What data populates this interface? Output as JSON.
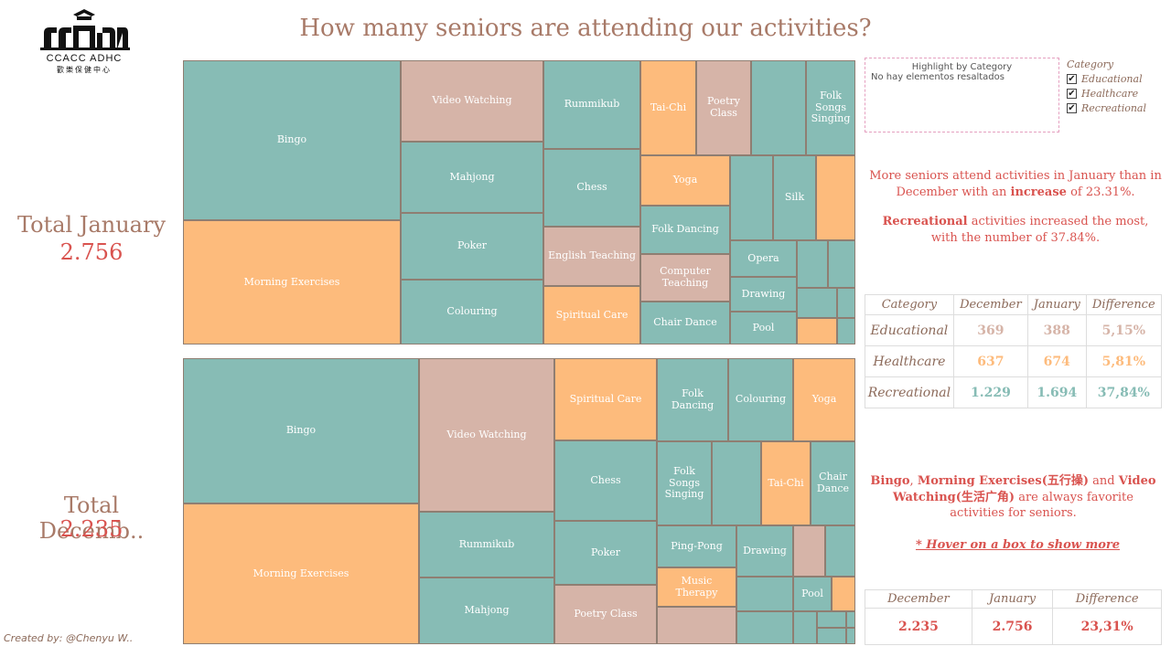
{
  "logo": {
    "name": "CCACC ADHC",
    "subtitle": "歡樂保健中心"
  },
  "title": "How many seniors are attending our activities?",
  "totals": {
    "january_label": "Total January",
    "january_value": "2.756",
    "december_label": "Total Decemb..",
    "december_value": "2.235"
  },
  "highlight": {
    "title": "Highlight by Category",
    "status": "No hay elementos resaltados"
  },
  "legend": {
    "title": "Category",
    "items": [
      {
        "label": "Educational",
        "checked": "✔"
      },
      {
        "label": "Healthcare",
        "checked": "✔"
      },
      {
        "label": "Recreational",
        "checked": "✔"
      }
    ]
  },
  "insights": {
    "line1a": "More seniors attend activities in January than in December with an ",
    "line1b": "increase",
    "line1c": " of 23.31%.",
    "line2a": "Recreational",
    "line2b": " activities increased the most, with the number of 37.84%.",
    "fav_a": "Bingo",
    "fav_b": ", ",
    "fav_c": "Morning Exercises(五行操)",
    "fav_d": " and ",
    "fav_e": "Video Watching(生活广角)",
    "fav_f": " are always favorite activities for seniors.",
    "hover_hint": "* Hover on a box to show more"
  },
  "category_table": {
    "headers": [
      "Category",
      "December",
      "January",
      "Difference"
    ],
    "rows": [
      {
        "category": "Educational",
        "december": "369",
        "january": "388",
        "difference": "5,15%",
        "color": "#d6b4a8"
      },
      {
        "category": "Healthcare",
        "december": "637",
        "january": "674",
        "difference": "5,81%",
        "color": "#fdbb7c"
      },
      {
        "category": "Recreational",
        "december": "1.229",
        "january": "1.694",
        "difference": "37,84%",
        "color": "#87bcb5"
      }
    ]
  },
  "summary_table": {
    "headers": [
      "December",
      "January",
      "Difference"
    ],
    "values": [
      "2.235",
      "2.756",
      "23,31%"
    ]
  },
  "colors": {
    "recreational": "#87bcb5",
    "educational": "#d6b4a8",
    "healthcare": "#fdbb7c",
    "accent": "#d9534f",
    "title": "#a87a68"
  },
  "treemap_january": [
    {
      "label": "Bingo",
      "category": "Recreational"
    },
    {
      "label": "Morning Exercises",
      "category": "Healthcare"
    },
    {
      "label": "Video Watching",
      "category": "Educational"
    },
    {
      "label": "Mahjong",
      "category": "Recreational"
    },
    {
      "label": "Poker",
      "category": "Recreational"
    },
    {
      "label": "Colouring",
      "category": "Recreational"
    },
    {
      "label": "Rummikub",
      "category": "Recreational"
    },
    {
      "label": "Chess",
      "category": "Recreational"
    },
    {
      "label": "English Teaching",
      "category": "Educational"
    },
    {
      "label": "Spiritual Care",
      "category": "Healthcare"
    },
    {
      "label": "Tai-Chi",
      "category": "Healthcare"
    },
    {
      "label": "Poetry Class",
      "category": "Educational"
    },
    {
      "label": "",
      "category": "Recreational"
    },
    {
      "label": "Folk Songs Singing",
      "category": "Recreational"
    },
    {
      "label": "Yoga",
      "category": "Healthcare"
    },
    {
      "label": "Folk Dancing",
      "category": "Recreational"
    },
    {
      "label": "Computer Teaching",
      "category": "Educational"
    },
    {
      "label": "Chair Dance",
      "category": "Recreational"
    },
    {
      "label": "",
      "category": "Recreational"
    },
    {
      "label": "Silk",
      "category": "Recreational"
    },
    {
      "label": "",
      "category": "Healthcare"
    },
    {
      "label": "Opera",
      "category": "Recreational"
    },
    {
      "label": "Drawing",
      "category": "Recreational"
    },
    {
      "label": "Pool",
      "category": "Recreational"
    },
    {
      "label": "",
      "category": "Recreational"
    },
    {
      "label": "",
      "category": "Recreational"
    },
    {
      "label": "",
      "category": "Recreational"
    },
    {
      "label": "",
      "category": "Recreational"
    },
    {
      "label": "",
      "category": "Healthcare"
    },
    {
      "label": "",
      "category": "Recreational"
    }
  ],
  "treemap_december": [
    {
      "label": "Bingo",
      "category": "Recreational"
    },
    {
      "label": "Morning Exercises",
      "category": "Healthcare"
    },
    {
      "label": "Video Watching",
      "category": "Educational"
    },
    {
      "label": "Rummikub",
      "category": "Recreational"
    },
    {
      "label": "Mahjong",
      "category": "Recreational"
    },
    {
      "label": "Spiritual Care",
      "category": "Healthcare"
    },
    {
      "label": "Chess",
      "category": "Recreational"
    },
    {
      "label": "Poker",
      "category": "Recreational"
    },
    {
      "label": "Poetry Class",
      "category": "Educational"
    },
    {
      "label": "Folk Dancing",
      "category": "Recreational"
    },
    {
      "label": "Colouring",
      "category": "Recreational"
    },
    {
      "label": "Yoga",
      "category": "Healthcare"
    },
    {
      "label": "Folk Songs Singing",
      "category": "Recreational"
    },
    {
      "label": "",
      "category": "Recreational"
    },
    {
      "label": "Tai-Chi",
      "category": "Healthcare"
    },
    {
      "label": "Chair Dance",
      "category": "Recreational"
    },
    {
      "label": "Ping-Pong",
      "category": "Recreational"
    },
    {
      "label": "Music Therapy",
      "category": "Healthcare"
    },
    {
      "label": "",
      "category": "Educational"
    },
    {
      "label": "Drawing",
      "category": "Recreational"
    },
    {
      "label": "",
      "category": "Educational"
    },
    {
      "label": "",
      "category": "Recreational"
    },
    {
      "label": "",
      "category": "Recreational"
    },
    {
      "label": "Pool",
      "category": "Recreational"
    },
    {
      "label": "",
      "category": "Healthcare"
    },
    {
      "label": "",
      "category": "Recreational"
    },
    {
      "label": "",
      "category": "Recreational"
    },
    {
      "label": "",
      "category": "Recreational"
    },
    {
      "label": "",
      "category": "Recreational"
    },
    {
      "label": "",
      "category": "Recreational"
    },
    {
      "label": "",
      "category": "Recreational"
    }
  ],
  "credit": "Created by: @Chenyu W.."
}
